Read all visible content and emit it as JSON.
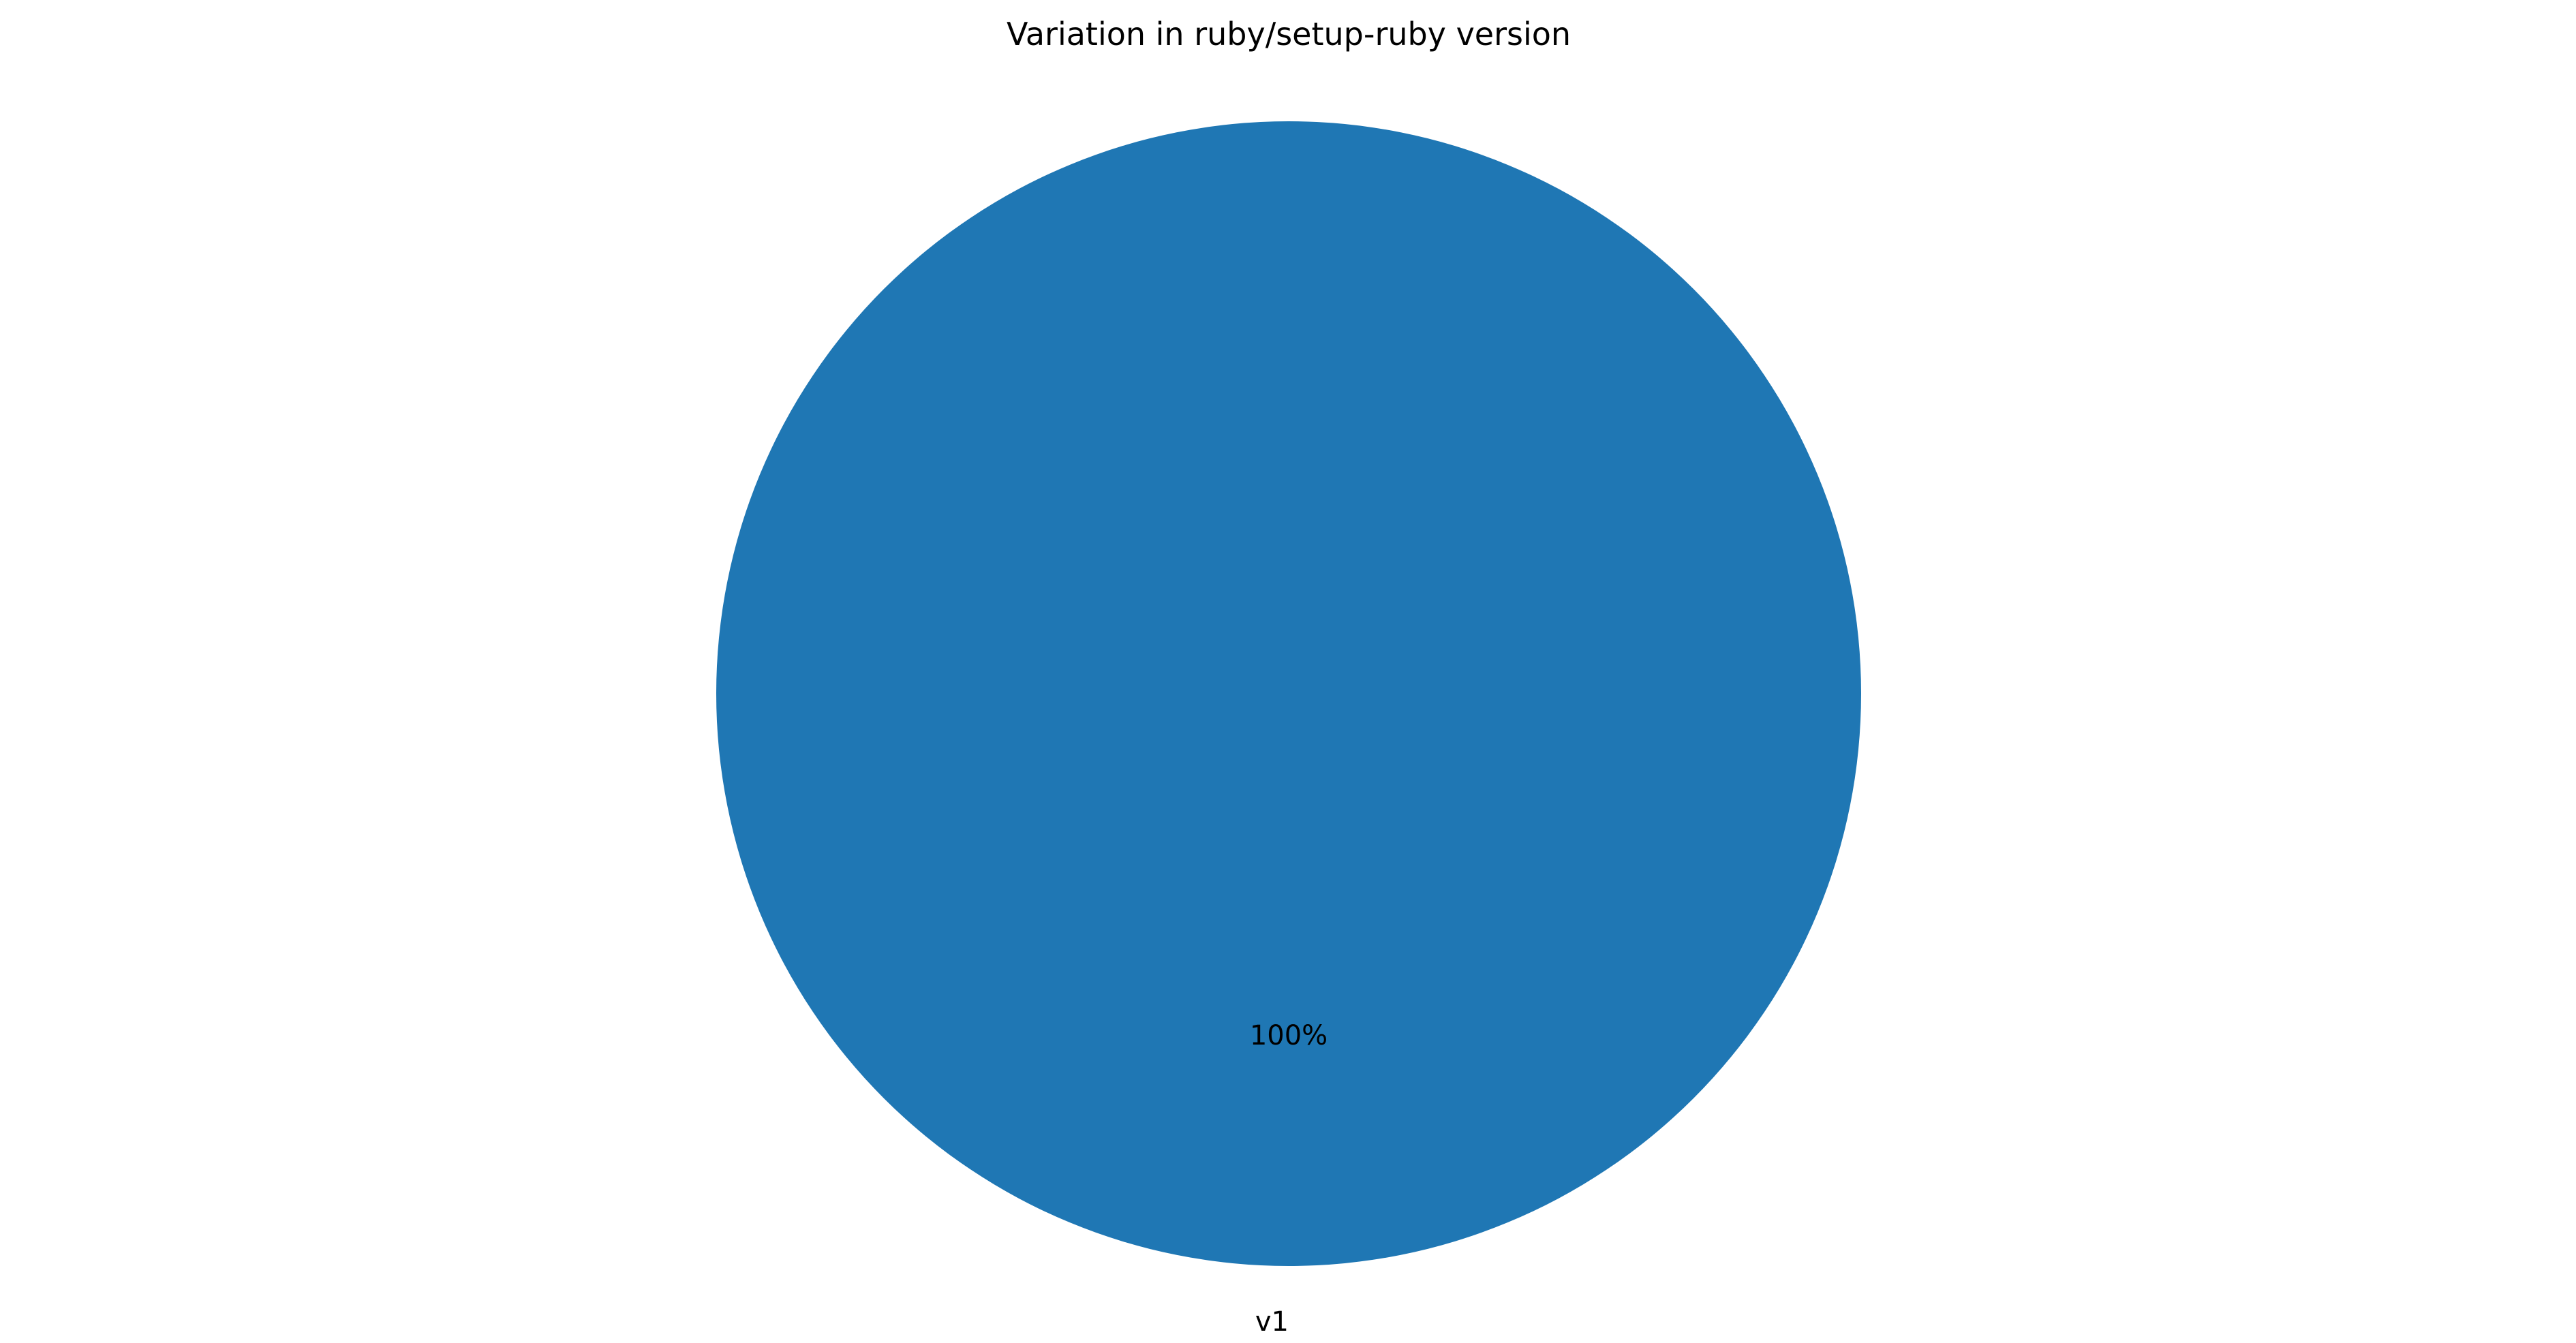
{
  "chart_data": {
    "type": "pie",
    "title": "Variation in ruby/setup-ruby version",
    "categories": [
      "v1"
    ],
    "values": [
      100
    ],
    "percent_labels": [
      "100%"
    ],
    "colors": [
      "#1f77b4"
    ],
    "start_angle_deg": 90,
    "direction": "counterclockwise",
    "legend": "none"
  }
}
